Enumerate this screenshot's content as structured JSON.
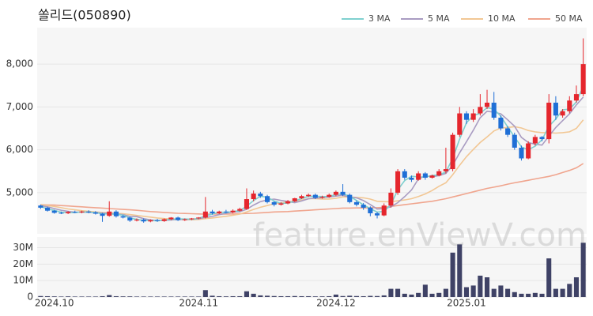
{
  "chart_data": {
    "type": "candlestick",
    "title": "쏠리드(050890)",
    "watermark": "feature.enViewV.com",
    "categories": [
      null,
      null,
      "2024.10",
      null,
      null,
      null,
      null,
      null,
      null,
      null,
      null,
      null,
      null,
      null,
      null,
      null,
      null,
      null,
      null,
      null,
      null,
      null,
      null,
      "2024.11",
      null,
      null,
      null,
      null,
      null,
      null,
      null,
      null,
      null,
      null,
      null,
      null,
      null,
      null,
      null,
      null,
      null,
      null,
      null,
      "2024.12",
      null,
      null,
      null,
      null,
      null,
      null,
      null,
      null,
      null,
      null,
      null,
      null,
      null,
      null,
      null,
      null,
      null,
      null,
      "2025.01",
      null,
      null,
      null,
      null,
      null,
      null,
      null,
      null,
      null,
      null,
      null,
      null,
      null,
      null,
      null,
      null,
      null
    ],
    "open": [
      4700,
      4650,
      4580,
      4530,
      4520,
      4550,
      4540,
      4560,
      4540,
      4510,
      4460,
      4560,
      4450,
      4420,
      4350,
      4370,
      4330,
      4360,
      4340,
      4380,
      4420,
      4360,
      4380,
      4400,
      4420,
      4560,
      4520,
      4560,
      4540,
      4580,
      4620,
      4850,
      4980,
      4920,
      4780,
      4720,
      4750,
      4800,
      4870,
      4920,
      4950,
      4880,
      4900,
      4950,
      5020,
      4950,
      4780,
      4720,
      4650,
      4520,
      4470,
      4700,
      5000,
      5500,
      5350,
      5300,
      5450,
      5350,
      5400,
      5500,
      5550,
      6350,
      6850,
      6700,
      6850,
      7000,
      7100,
      6750,
      6500,
      6350,
      6050,
      5800,
      6150,
      6300,
      6250,
      7100,
      6800,
      6900,
      7150,
      7300
    ],
    "high": [
      4720,
      4670,
      4600,
      4560,
      4570,
      4580,
      4580,
      4590,
      4570,
      4530,
      4800,
      4590,
      4480,
      4440,
      4400,
      4400,
      4380,
      4390,
      4400,
      4430,
      4440,
      4400,
      4410,
      4430,
      4900,
      4600,
      4580,
      4600,
      4610,
      4650,
      5100,
      5050,
      5020,
      4950,
      4800,
      4780,
      4830,
      4880,
      4950,
      4980,
      4980,
      4930,
      4980,
      5050,
      5200,
      4980,
      4820,
      4760,
      4680,
      4550,
      4750,
      5100,
      5550,
      5550,
      5400,
      5500,
      5480,
      5420,
      5550,
      6050,
      6400,
      7000,
      6900,
      6950,
      7300,
      7400,
      7350,
      6800,
      6550,
      6400,
      6100,
      6200,
      6350,
      6320,
      7300,
      7250,
      6950,
      7250,
      7500,
      8600
    ],
    "low": [
      4620,
      4560,
      4510,
      4500,
      4500,
      4520,
      4520,
      4520,
      4490,
      4320,
      4440,
      4420,
      4400,
      4320,
      4330,
      4300,
      4310,
      4320,
      4320,
      4360,
      4340,
      4340,
      4360,
      4380,
      4400,
      4490,
      4500,
      4520,
      4520,
      4560,
      4600,
      4800,
      4880,
      4750,
      4680,
      4700,
      4730,
      4780,
      4850,
      4900,
      4850,
      4860,
      4880,
      4920,
      4920,
      4750,
      4680,
      4600,
      4450,
      4400,
      4450,
      4650,
      4950,
      5300,
      5250,
      5280,
      5300,
      5330,
      5380,
      5450,
      5500,
      6300,
      6600,
      6650,
      6800,
      6950,
      6700,
      6450,
      6300,
      6000,
      5750,
      5780,
      6100,
      6200,
      6150,
      6700,
      6750,
      6850,
      7100,
      7250
    ],
    "close": [
      4650,
      4580,
      4530,
      4520,
      4550,
      4540,
      4560,
      4540,
      4510,
      4460,
      4560,
      4450,
      4420,
      4350,
      4370,
      4330,
      4360,
      4340,
      4380,
      4420,
      4360,
      4380,
      4400,
      4420,
      4560,
      4520,
      4560,
      4540,
      4580,
      4620,
      4850,
      4980,
      4920,
      4780,
      4720,
      4750,
      4800,
      4870,
      4920,
      4950,
      4880,
      4900,
      4950,
      5020,
      4950,
      4780,
      4720,
      4650,
      4520,
      4470,
      4700,
      5000,
      5500,
      5350,
      5300,
      5450,
      5350,
      5400,
      5500,
      5550,
      6350,
      6850,
      6700,
      6850,
      7000,
      7100,
      6750,
      6500,
      6350,
      6050,
      5800,
      6150,
      6300,
      6250,
      7100,
      6800,
      6900,
      7150,
      7300,
      8000
    ],
    "up_color": "#e5262d",
    "down_color": "#1f6fd6",
    "series": [
      {
        "name": "3 MA",
        "color": "#7fd0cf",
        "values": [
          4680,
          4620,
          4587,
          4543,
          4533,
          4537,
          4550,
          4547,
          4537,
          4503,
          4510,
          4490,
          4477,
          4407,
          4380,
          4350,
          4353,
          4343,
          4360,
          4380,
          4387,
          4387,
          4380,
          4400,
          4460,
          4500,
          4547,
          4540,
          4560,
          4580,
          4683,
          4817,
          4917,
          4893,
          4807,
          4750,
          4757,
          4807,
          4863,
          4913,
          4917,
          4910,
          4910,
          4957,
          4973,
          4917,
          4817,
          4717,
          4630,
          4547,
          4563,
          4723,
          5067,
          5283,
          5383,
          5367,
          5367,
          5400,
          5417,
          5483,
          5800,
          6250,
          6633,
          6800,
          6850,
          6983,
          6950,
          6783,
          6533,
          6300,
          6067,
          6000,
          6083,
          6233,
          6550,
          6717,
          6933,
          6950,
          7117,
          7483
        ]
      },
      {
        "name": "5 MA",
        "color": "#a99cc2",
        "values": [
          4700,
          4670,
          4630,
          4590,
          4566,
          4544,
          4548,
          4542,
          4536,
          4522,
          4522,
          4504,
          4488,
          4448,
          4442,
          4394,
          4366,
          4350,
          4356,
          4362,
          4378,
          4376,
          4380,
          4392,
          4424,
          4448,
          4488,
          4520,
          4552,
          4556,
          4614,
          4710,
          4790,
          4830,
          4850,
          4820,
          4794,
          4768,
          4808,
          4858,
          4874,
          4884,
          4900,
          4920,
          4940,
          4896,
          4880,
          4816,
          4724,
          4618,
          4628,
          4672,
          4768,
          4908,
          5064,
          5320,
          5390,
          5370,
          5400,
          5450,
          5640,
          5930,
          6190,
          6460,
          6750,
          6900,
          6880,
          6840,
          6700,
          6550,
          6290,
          6170,
          6130,
          6110,
          6320,
          6520,
          6680,
          6840,
          7050,
          7230
        ]
      },
      {
        "name": "10 MA",
        "color": "#f2c794",
        "values": [
          4720,
          4700,
          4680,
          4650,
          4620,
          4600,
          4580,
          4565,
          4550,
          4540,
          4530,
          4520,
          4510,
          4490,
          4470,
          4450,
          4430,
          4410,
          4395,
          4390,
          4380,
          4372,
          4368,
          4375,
          4395,
          4410,
          4430,
          4450,
          4475,
          4500,
          4550,
          4610,
          4660,
          4700,
          4740,
          4760,
          4790,
          4800,
          4830,
          4860,
          4860,
          4850,
          4850,
          4870,
          4900,
          4900,
          4890,
          4880,
          4850,
          4800,
          4790,
          4790,
          4810,
          4830,
          4860,
          4910,
          4970,
          5050,
          5150,
          5230,
          5420,
          5640,
          5840,
          6010,
          6170,
          6300,
          6440,
          6510,
          6520,
          6540,
          6510,
          6450,
          6420,
          6400,
          6400,
          6390,
          6400,
          6420,
          6500,
          6700
        ]
      },
      {
        "name": "50 MA",
        "color": "#f0a58e",
        "values": [
          4720,
          4715,
          4710,
          4700,
          4690,
          4680,
          4670,
          4660,
          4650,
          4640,
          4630,
          4620,
          4610,
          4600,
          4590,
          4575,
          4560,
          4550,
          4540,
          4530,
          4520,
          4515,
          4510,
          4505,
          4500,
          4500,
          4500,
          4500,
          4505,
          4510,
          4515,
          4520,
          4530,
          4540,
          4550,
          4555,
          4560,
          4570,
          4580,
          4590,
          4600,
          4610,
          4620,
          4630,
          4640,
          4640,
          4645,
          4645,
          4650,
          4650,
          4660,
          4680,
          4700,
          4720,
          4740,
          4760,
          4780,
          4800,
          4830,
          4860,
          4900,
          4940,
          4980,
          5020,
          5060,
          5100,
          5130,
          5160,
          5200,
          5230,
          5260,
          5290,
          5320,
          5350,
          5380,
          5420,
          5470,
          5520,
          5580,
          5680
        ]
      }
    ],
    "ylim": [
      4040,
      8850
    ],
    "yticks": [
      {
        "value": 5000,
        "label": "5,000"
      },
      {
        "value": 6000,
        "label": "6,000"
      },
      {
        "value": 7000,
        "label": "7,000"
      },
      {
        "value": 8000,
        "label": "8,000"
      }
    ],
    "grid": true,
    "legend": "top-right",
    "volume": {
      "color": "#3f4266",
      "values": [
        600000,
        500000,
        400000,
        300000,
        400000,
        300000,
        300000,
        300000,
        300000,
        500000,
        1200000,
        500000,
        400000,
        400000,
        300000,
        300000,
        300000,
        300000,
        300000,
        300000,
        300000,
        300000,
        300000,
        300000,
        4200000,
        800000,
        500000,
        400000,
        500000,
        500000,
        3500000,
        2000000,
        1000000,
        800000,
        600000,
        500000,
        500000,
        600000,
        500000,
        500000,
        400000,
        400000,
        500000,
        1500000,
        600000,
        800000,
        600000,
        500000,
        700000,
        600000,
        1000000,
        5000000,
        5000000,
        2000000,
        1500000,
        2500000,
        7500000,
        2000000,
        2500000,
        5000000,
        27000000,
        32000000,
        6000000,
        7000000,
        13000000,
        12000000,
        5000000,
        7000000,
        5000000,
        3000000,
        2000000,
        2000000,
        2500000,
        2000000,
        23500000,
        5000000,
        5000000,
        8000000,
        12000000,
        33000000
      ],
      "ylim": [
        0,
        36500000
      ],
      "yticks": [
        0,
        {
          "value": 10000000,
          "label": "10M"
        },
        {
          "value": 20000000,
          "label": "20M"
        },
        {
          "value": 30000000,
          "label": "30M"
        }
      ]
    }
  }
}
